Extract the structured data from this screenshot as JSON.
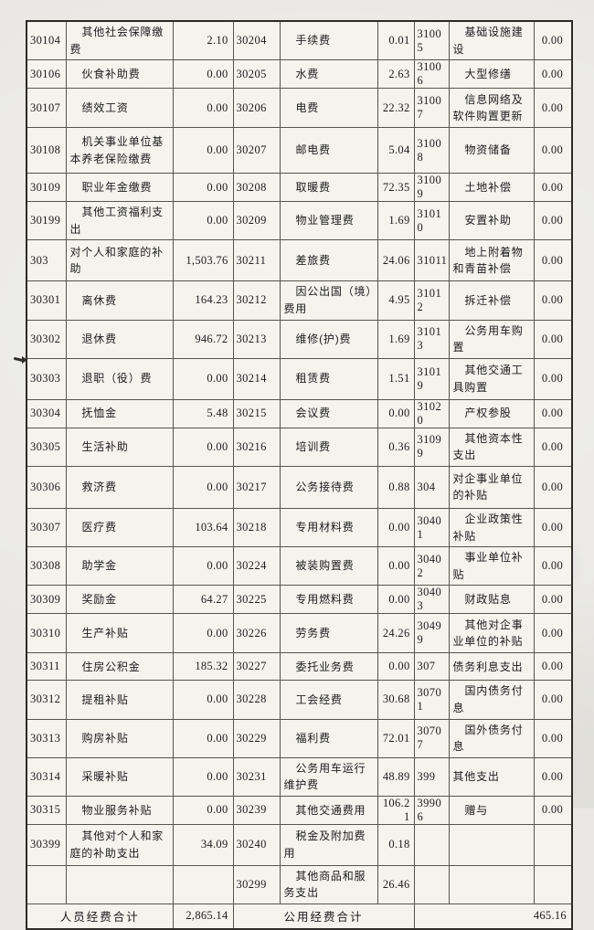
{
  "colors": {
    "paper": "#e9e8e4",
    "cell": "#f4f3ee",
    "ink": "#1c1c1e",
    "line": "#56544f",
    "outer_line": "#2b2a27",
    "bleed": "#a9bdc9"
  },
  "table": {
    "rows": [
      {
        "c1": "30104",
        "n1": "其他社会保障缴费",
        "v1": "2.10",
        "c2": "30204",
        "n2": "手续费",
        "v2": "0.01",
        "c3": "31005",
        "n3": "基础设施建设",
        "v3": "0.00"
      },
      {
        "c1": "30106",
        "n1": "伙食补助费",
        "v1": "0.00",
        "c2": "30205",
        "n2": "水费",
        "v2": "2.63",
        "c3": "31006",
        "n3": "大型修缮",
        "v3": "0.00"
      },
      {
        "c1": "30107",
        "n1": "绩效工资",
        "v1": "0.00",
        "c2": "30206",
        "n2": "电费",
        "v2": "22.32",
        "c3": "31007",
        "n3": "信息网络及软件购置更新",
        "v3": "0.00"
      },
      {
        "c1": "30108",
        "n1": "机关事业单位基本养老保险缴费",
        "v1": "0.00",
        "c2": "30207",
        "n2": "邮电费",
        "v2": "5.04",
        "c3": "31008",
        "n3": "物资储备",
        "v3": "0.00"
      },
      {
        "c1": "30109",
        "n1": "职业年金缴费",
        "v1": "0.00",
        "c2": "30208",
        "n2": "取暖费",
        "v2": "72.35",
        "c3": "31009",
        "n3": "土地补偿",
        "v3": "0.00"
      },
      {
        "c1": "30199",
        "n1": "其他工资福利支出",
        "v1": "0.00",
        "c2": "30209",
        "n2": "物业管理费",
        "v2": "1.69",
        "c3": "31010",
        "n3": "安置补助",
        "v3": "0.00"
      },
      {
        "c1": "303",
        "n1": "对个人和家庭的补助",
        "v1": "1,503.76",
        "c2": "30211",
        "n2": "差旅费",
        "v2": "24.06",
        "c3": "31011",
        "n3": "地上附着物和青苗补偿",
        "v3": "0.00"
      },
      {
        "c1": "30301",
        "n1": "离休费",
        "v1": "164.23",
        "c2": "30212",
        "n2": "因公出国（境）费用",
        "v2": "4.95",
        "c3": "31012",
        "n3": "拆迁补偿",
        "v3": "0.00"
      },
      {
        "c1": "30302",
        "n1": "退休费",
        "v1": "946.72",
        "c2": "30213",
        "n2": "维修(护)费",
        "v2": "1.69",
        "c3": "31013",
        "n3": "公务用车购置",
        "v3": "0.00"
      },
      {
        "c1": "30303",
        "n1": "退职（役）费",
        "v1": "0.00",
        "c2": "30214",
        "n2": "租赁费",
        "v2": "1.51",
        "c3": "31019",
        "n3": "其他交通工具购置",
        "v3": "0.00"
      },
      {
        "c1": "30304",
        "n1": "抚恤金",
        "v1": "5.48",
        "c2": "30215",
        "n2": "会议费",
        "v2": "0.00",
        "c3": "31020",
        "n3": "产权参股",
        "v3": "0.00"
      },
      {
        "c1": "30305",
        "n1": "生活补助",
        "v1": "0.00",
        "c2": "30216",
        "n2": "培训费",
        "v2": "0.36",
        "c3": "31099",
        "n3": "其他资本性支出",
        "v3": "0.00"
      },
      {
        "c1": "30306",
        "n1": "救济费",
        "v1": "0.00",
        "c2": "30217",
        "n2": "公务接待费",
        "v2": "0.88",
        "c3": "304",
        "n3": "对企事业单位的补贴",
        "v3": "0.00"
      },
      {
        "c1": "30307",
        "n1": "医疗费",
        "v1": "103.64",
        "c2": "30218",
        "n2": "专用材料费",
        "v2": "0.00",
        "c3": "30401",
        "n3": "企业政策性补贴",
        "v3": "0.00"
      },
      {
        "c1": "30308",
        "n1": "助学金",
        "v1": "0.00",
        "c2": "30224",
        "n2": "被装购置费",
        "v2": "0.00",
        "c3": "30402",
        "n3": "事业单位补贴",
        "v3": "0.00"
      },
      {
        "c1": "30309",
        "n1": "奖励金",
        "v1": "64.27",
        "c2": "30225",
        "n2": "专用燃料费",
        "v2": "0.00",
        "c3": "30403",
        "n3": "财政贴息",
        "v3": "0.00"
      },
      {
        "c1": "30310",
        "n1": "生产补贴",
        "v1": "0.00",
        "c2": "30226",
        "n2": "劳务费",
        "v2": "24.26",
        "c3": "30499",
        "n3": "其他对企事业单位的补贴",
        "v3": "0.00"
      },
      {
        "c1": "30311",
        "n1": "住房公积金",
        "v1": "185.32",
        "c2": "30227",
        "n2": "委托业务费",
        "v2": "0.00",
        "c3": "307",
        "n3": "债务利息支出",
        "v3": "0.00"
      },
      {
        "c1": "30312",
        "n1": "提租补贴",
        "v1": "0.00",
        "c2": "30228",
        "n2": "工会经费",
        "v2": "30.68",
        "c3": "30701",
        "n3": "国内债务付息",
        "v3": "0.00"
      },
      {
        "c1": "30313",
        "n1": "购房补贴",
        "v1": "0.00",
        "c2": "30229",
        "n2": "福利费",
        "v2": "72.01",
        "c3": "30707",
        "n3": "国外债务付息",
        "v3": "0.00"
      },
      {
        "c1": "30314",
        "n1": "采暖补贴",
        "v1": "0.00",
        "c2": "30231",
        "n2": "公务用车运行维护费",
        "v2": "48.89",
        "c3": "399",
        "n3": "其他支出",
        "v3": "0.00"
      },
      {
        "c1": "30315",
        "n1": "物业服务补贴",
        "v1": "0.00",
        "c2": "30239",
        "n2": "其他交通费用",
        "v2": "106.21",
        "c3": "39906",
        "n3": "赠与",
        "v3": "0.00"
      },
      {
        "c1": "30399",
        "n1": "其他对个人和家庭的补助支出",
        "v1": "34.09",
        "c2": "30240",
        "n2": "税金及附加费用",
        "v2": "0.18",
        "c3": "",
        "n3": "",
        "v3": ""
      },
      {
        "c1": "",
        "n1": "",
        "v1": "",
        "c2": "30299",
        "n2": "其他商品和服务支出",
        "v2": "26.46",
        "c3": "",
        "n3": "",
        "v3": ""
      }
    ]
  },
  "footer": {
    "personnel_total_label": "人员经费合计",
    "personnel_total_value": "2,865.14",
    "public_total_label": "公用经费合计",
    "public_total_value": "465.16"
  }
}
